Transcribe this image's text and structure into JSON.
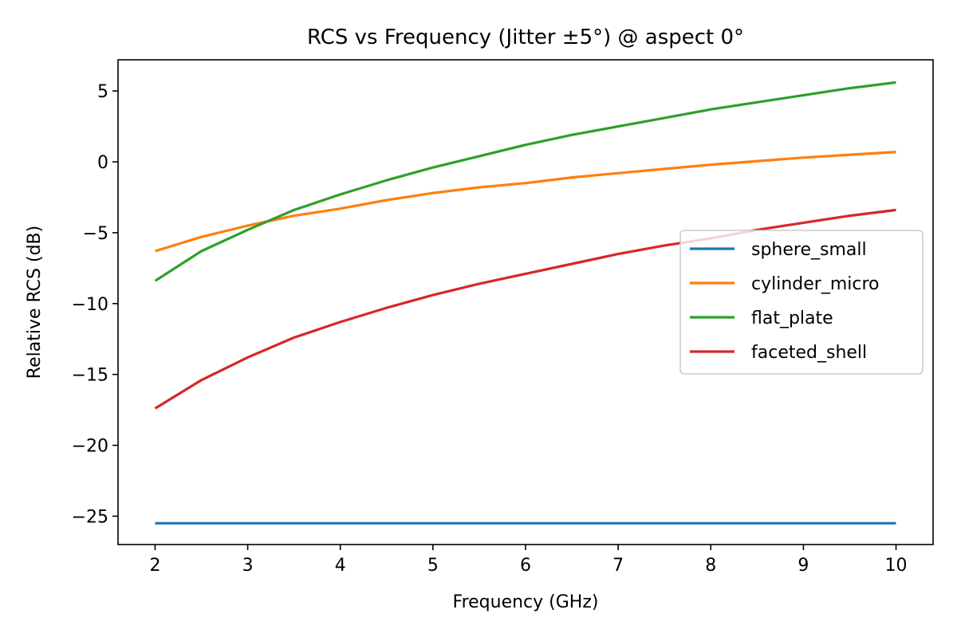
{
  "chart_data": {
    "type": "line",
    "title": "RCS vs Frequency (Jitter ±5°) @ aspect 0°",
    "xlabel": "Frequency (GHz)",
    "ylabel": "Relative RCS (dB)",
    "xlim": [
      1.6,
      10.4
    ],
    "ylim": [
      -27,
      7.2
    ],
    "x_ticks": [
      2,
      3,
      4,
      5,
      6,
      7,
      8,
      9,
      10
    ],
    "x_tick_labels": [
      "2",
      "3",
      "4",
      "5",
      "6",
      "7",
      "8",
      "9",
      "10"
    ],
    "y_ticks": [
      5,
      0,
      -5,
      -10,
      -15,
      -20,
      -25
    ],
    "y_tick_labels": [
      "5",
      "0",
      "−5",
      "−10",
      "−15",
      "−20",
      "−25"
    ],
    "grid": false,
    "legend_position": "center-right",
    "x": [
      2,
      2.5,
      3,
      3.5,
      4,
      4.5,
      5,
      5.5,
      6,
      6.5,
      7,
      7.5,
      8,
      8.5,
      9,
      9.5,
      10
    ],
    "series": [
      {
        "name": "sphere_small",
        "color": "#1f77b4",
        "values": [
          -25.5,
          -25.5,
          -25.5,
          -25.5,
          -25.5,
          -25.5,
          -25.5,
          -25.5,
          -25.5,
          -25.5,
          -25.5,
          -25.5,
          -25.5,
          -25.5,
          -25.5,
          -25.5,
          -25.5
        ]
      },
      {
        "name": "cylinder_micro",
        "color": "#ff7f0e",
        "values": [
          -6.3,
          -5.3,
          -4.5,
          -3.8,
          -3.3,
          -2.7,
          -2.2,
          -1.8,
          -1.5,
          -1.1,
          -0.8,
          -0.5,
          -0.2,
          0.05,
          0.3,
          0.5,
          0.7
        ]
      },
      {
        "name": "flat_plate",
        "color": "#2ca02c",
        "values": [
          -8.4,
          -6.3,
          -4.8,
          -3.4,
          -2.3,
          -1.3,
          -0.4,
          0.4,
          1.2,
          1.9,
          2.5,
          3.1,
          3.7,
          4.2,
          4.7,
          5.2,
          5.6
        ]
      },
      {
        "name": "faceted_shell",
        "color": "#d62728",
        "values": [
          -17.4,
          -15.4,
          -13.8,
          -12.4,
          -11.3,
          -10.3,
          -9.4,
          -8.6,
          -7.9,
          -7.2,
          -6.5,
          -5.9,
          -5.4,
          -4.8,
          -4.3,
          -3.8,
          -3.4
        ]
      }
    ]
  }
}
